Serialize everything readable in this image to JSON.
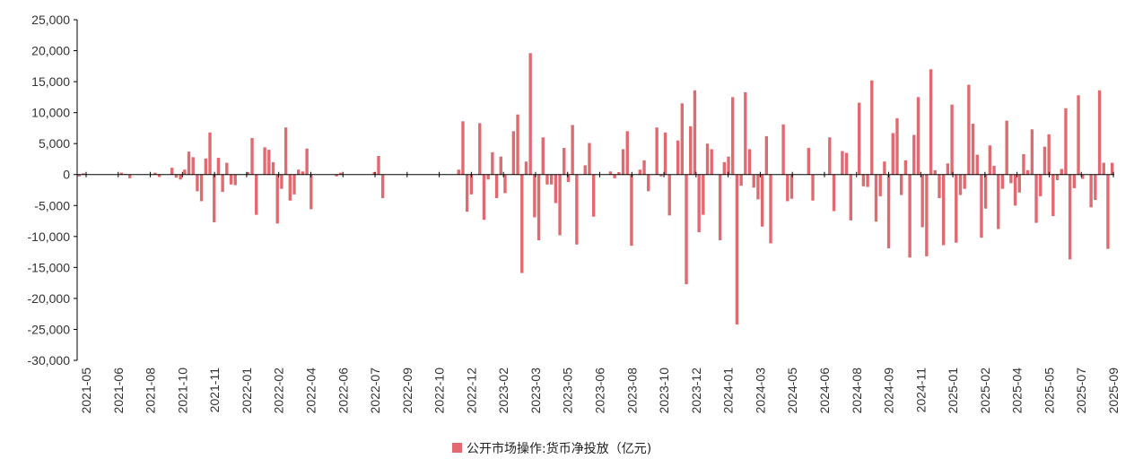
{
  "colors": {
    "bar": "#e06a6f",
    "axis": "#000000",
    "tick_text": "#333333"
  },
  "legend": {
    "label": "公开市场操作:货币净投放（亿元)"
  },
  "chart_data": {
    "type": "bar",
    "title": "",
    "xlabel": "",
    "ylabel": "",
    "ylim": [
      -30000,
      25000
    ],
    "yticks": [
      "25,000",
      "20,000",
      "15,000",
      "10,000",
      "5,000",
      "0",
      "-5,000",
      "-10,000",
      "-15,000",
      "-20,000",
      "-25,000",
      "-30,000"
    ],
    "ytick_values": [
      25000,
      20000,
      15000,
      10000,
      5000,
      0,
      -5000,
      -10000,
      -15000,
      -20000,
      -25000,
      -30000
    ],
    "xtick_labels": [
      "2021-05",
      "2021-06",
      "2021-08",
      "2021-10",
      "2021-11",
      "2022-01",
      "2022-02",
      "2022-04",
      "2022-06",
      "2022-07",
      "2022-09",
      "2022-10",
      "2022-12",
      "2023-02",
      "2023-03",
      "2023-05",
      "2023-06",
      "2023-08",
      "2023-10",
      "2023-12",
      "2024-01",
      "2024-03",
      "2024-05",
      "2024-06",
      "2024-08",
      "2024-09",
      "2024-11",
      "2025-01",
      "2025-02",
      "2025-04",
      "2025-05",
      "2025-07",
      "2025-09"
    ],
    "series": [
      {
        "name": "公开市场操作:货币净投放（亿元)",
        "values": [
          -300,
          200,
          0,
          0,
          0,
          0,
          0,
          0,
          0,
          0,
          300,
          100,
          -600,
          0,
          0,
          0,
          0,
          0,
          300,
          -400,
          0,
          0,
          1100,
          -500,
          -800,
          800,
          3700,
          2800,
          -2700,
          -4300,
          2600,
          6800,
          -7700,
          2700,
          -2800,
          1900,
          -1600,
          -1700,
          0,
          0,
          400,
          5900,
          -6500,
          0,
          4400,
          4000,
          2000,
          -7900,
          -2300,
          7600,
          -4200,
          -3200,
          800,
          500,
          4200,
          -5600,
          0,
          0,
          0,
          0,
          0,
          -300,
          300,
          0,
          0,
          0,
          0,
          0,
          0,
          0,
          400,
          3000,
          -3800,
          0,
          0,
          0,
          0,
          0,
          0,
          0,
          0,
          0,
          0,
          0,
          0,
          0,
          0,
          0,
          0,
          0,
          800,
          8600,
          -6000,
          -3200,
          0,
          8300,
          -7300,
          -800,
          3600,
          -3800,
          2900,
          -3000,
          0,
          7000,
          9700,
          -15900,
          2100,
          19600,
          -6900,
          -10600,
          6000,
          -1600,
          -1600,
          -4600,
          -9800,
          4300,
          -1200,
          8000,
          -11300,
          0,
          1500,
          5100,
          -6800,
          0,
          0,
          0,
          500,
          -600,
          400,
          4100,
          7000,
          -11500,
          0,
          800,
          2300,
          -2700,
          0,
          7600,
          -300,
          6800,
          -6600,
          0,
          5500,
          11500,
          -17700,
          7800,
          13600,
          -9300,
          -6500,
          5000,
          4100,
          0,
          -10600,
          2000,
          2900,
          12500,
          -24200,
          -1800,
          13300,
          4100,
          -2100,
          -4000,
          -8400,
          6200,
          -11100,
          0,
          0,
          8100,
          -4300,
          -3900,
          0,
          0,
          0,
          4300,
          -4200,
          0,
          0,
          0,
          6000,
          -5900,
          0,
          3800,
          3500,
          -7400,
          0,
          11600,
          -1900,
          -2000,
          15200,
          -7600,
          -3500,
          2100,
          -11900,
          6700,
          9100,
          -3300,
          2300,
          -13400,
          6400,
          12500,
          -8500,
          -13200,
          17000,
          700,
          -3800,
          -11400,
          1800,
          11300,
          -11000,
          -3300,
          -2300,
          14500,
          8200,
          3200,
          -10200,
          -5500,
          4700,
          1400,
          -8800,
          -2300,
          8700,
          -1400,
          -5000,
          -2900,
          3300,
          700,
          7300,
          -7800,
          -3500,
          4500,
          6500,
          -6700,
          -900,
          900,
          10700,
          -13700,
          -2200,
          12800,
          -700,
          0,
          -5300,
          -4100,
          13600,
          1900,
          -12000,
          1900
        ]
      }
    ],
    "grid": false,
    "legend_position": "bottom-center"
  }
}
